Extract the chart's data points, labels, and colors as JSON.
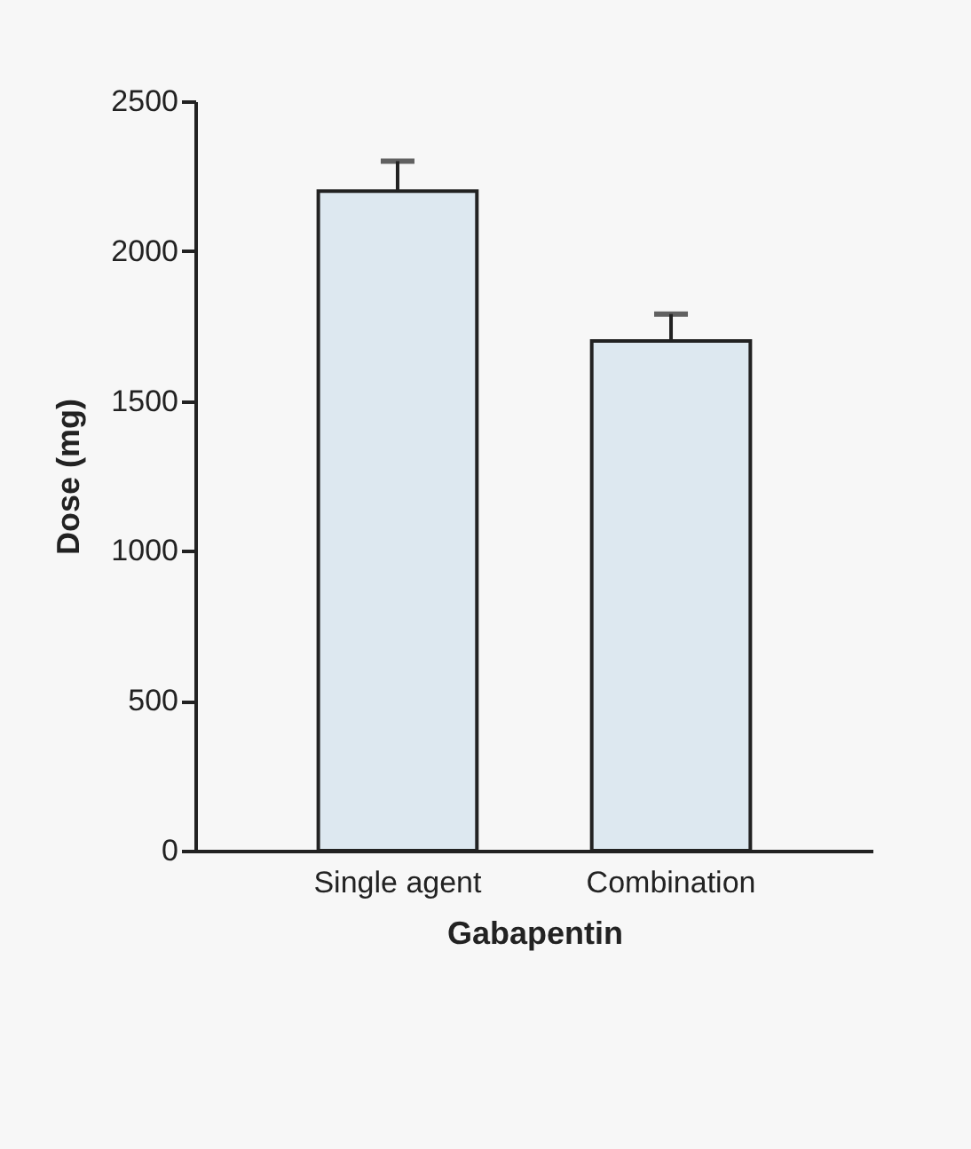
{
  "chart_data": {
    "type": "bar",
    "xlabel": "Gabapentin",
    "ylabel": "Dose (mg)",
    "categories": [
      "Single agent",
      "Combination"
    ],
    "values": [
      2200,
      1700
    ],
    "errors": [
      100,
      90
    ],
    "color": "#dde8f0",
    "ylim": [
      0,
      2500
    ],
    "yticks": [
      0,
      500,
      1000,
      1500,
      2000,
      2500
    ],
    "grid": false
  }
}
